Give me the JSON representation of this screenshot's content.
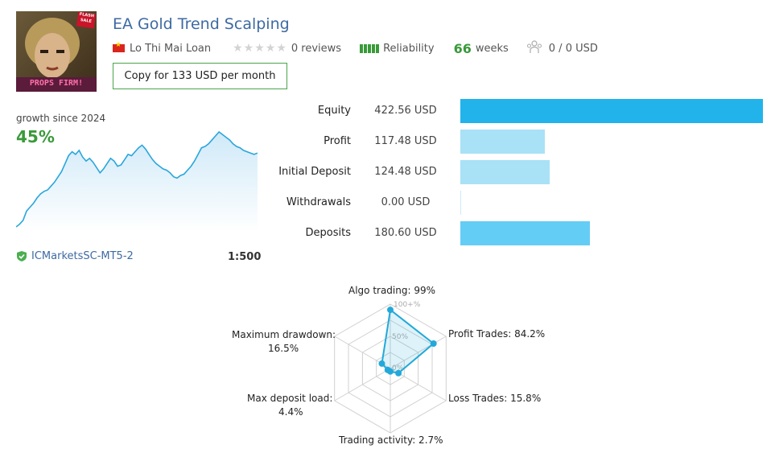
{
  "header": {
    "title": "EA Gold Trend Scalping",
    "author": "Lo Thi Mai Loan",
    "stars": "★★★★★",
    "reviews": "0 reviews",
    "reliability": "Reliability",
    "weeks_value": "66",
    "weeks_label": "weeks",
    "subscribers": "0 / 0 USD",
    "copy_button": "Copy for 133 USD per month"
  },
  "avatar": {
    "badge": "FLASH SALE",
    "caption": "PROPS FIRM!"
  },
  "growth": {
    "label": "growth since 2024",
    "value": "45%",
    "series": [
      0,
      2,
      5,
      12,
      15,
      18,
      22,
      25,
      27,
      28,
      31,
      34,
      38,
      42,
      48,
      54,
      57,
      55,
      58,
      53,
      50,
      52,
      49,
      45,
      41,
      44,
      48,
      52,
      50,
      46,
      47,
      51,
      55,
      54,
      57,
      60,
      62,
      59,
      55,
      51,
      48,
      46,
      44,
      43,
      41,
      38,
      37,
      39,
      40,
      43,
      46,
      50,
      55,
      60,
      61,
      63,
      66,
      69,
      72,
      70,
      68,
      66,
      63,
      61,
      60,
      58,
      57,
      56,
      55,
      56
    ]
  },
  "broker": {
    "name": "ICMarketsSC-MT5-2",
    "leverage": "1:500"
  },
  "stats": [
    {
      "label": "Equity",
      "value": "422.56 USD",
      "amount": 422.56,
      "color": "#22b3ea"
    },
    {
      "label": "Profit",
      "value": "117.48 USD",
      "amount": 117.48,
      "color": "#a9e1f7"
    },
    {
      "label": "Initial Deposit",
      "value": "124.48 USD",
      "amount": 124.48,
      "color": "#a9e1f7"
    },
    {
      "label": "Withdrawals",
      "value": "0.00 USD",
      "amount": 0.0,
      "color": "#a9e1f7"
    },
    {
      "label": "Deposits",
      "value": "180.60 USD",
      "amount": 180.6,
      "color": "#64cdf5"
    }
  ],
  "radar": {
    "axis_ticks": [
      "100+%",
      "50%",
      "0%"
    ],
    "metrics": [
      {
        "label": "Algo trading: 99%",
        "value": 99
      },
      {
        "label": "Profit Trades: 84.2%",
        "value": 84.2
      },
      {
        "label": "Loss Trades: 15.8%",
        "value": 15.8
      },
      {
        "label": "Trading activity: 2.7%",
        "value": 2.7
      },
      {
        "label": "Max deposit load:",
        "label2": "4.4%",
        "value": 4.4
      },
      {
        "label": "Maximum drawdown:",
        "label2": "16.5%",
        "value": 16.5
      }
    ]
  },
  "colors": {
    "accent_blue": "#3d6aa1",
    "green": "#3a9a3a",
    "radar_line": "#22a9d9"
  }
}
